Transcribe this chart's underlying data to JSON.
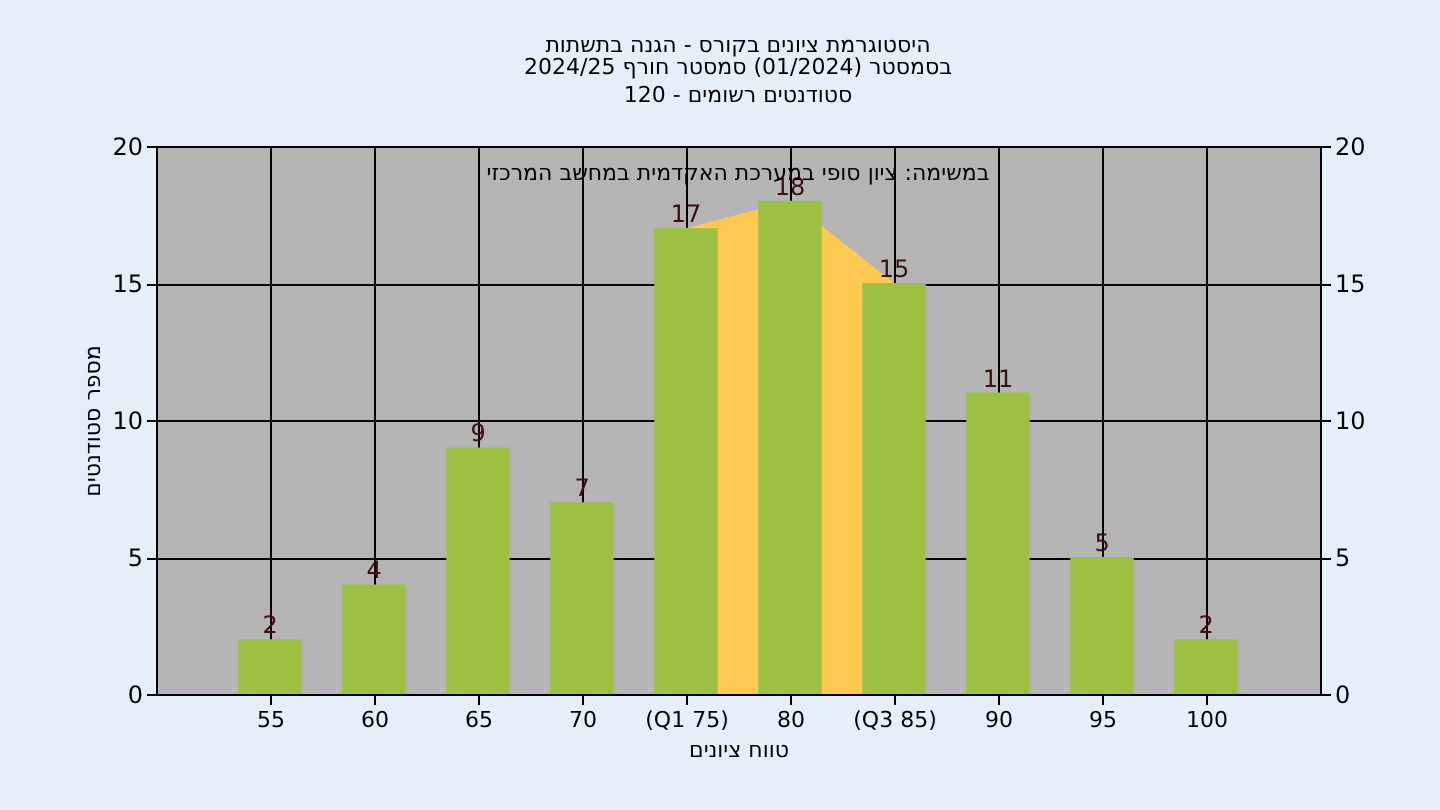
{
  "chart_data": {
    "type": "bar",
    "title": "היסטוגרמת ציונים בקורס - הגנה בתשתות",
    "subtitle": "בסמסטר  (01/2024)  סמסטר חורף 2024/25\nסטודנטים רשומים - 120",
    "xlabel": "טווח ציונים",
    "ylabel": "מספר סטודנטים",
    "annotations": [
      "במשימה: ציון סופי במערכת האקדמית במחשב המרכזי"
    ],
    "categories": [
      "55",
      "60",
      "65",
      "70",
      "(Q1 75)",
      "80",
      "(Q3 85)",
      "90",
      "95",
      "100"
    ],
    "series": [
      {
        "type": "area",
        "color": "#ffc850",
        "values": [
          null,
          null,
          null,
          null,
          17,
          18,
          15,
          null,
          null,
          null
        ]
      },
      {
        "color": "#9cc142",
        "values": [
          2,
          4,
          9,
          7,
          17,
          18,
          15,
          11,
          5,
          2
        ],
        "value_labels": [
          "2",
          "4",
          "9",
          "7",
          "17",
          "18",
          "15",
          "11",
          "5",
          "2"
        ]
      }
    ],
    "ylim": [
      0,
      20
    ],
    "yticks": [
      0,
      5,
      10,
      15,
      20
    ],
    "y2lim": [
      0,
      20
    ],
    "y2ticks": [
      0,
      5,
      10,
      15,
      20
    ],
    "grid": true
  }
}
